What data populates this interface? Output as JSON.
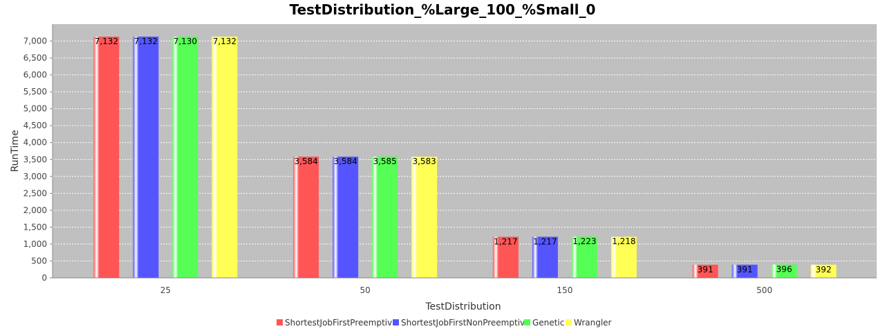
{
  "chart_data": {
    "type": "bar",
    "title": "TestDistribution_%Large_100_%Small_0",
    "xlabel": "TestDistribution",
    "ylabel": "RunTime",
    "categories": [
      "25",
      "50",
      "150",
      "500"
    ],
    "ylim": [
      0,
      7500
    ],
    "yticks": [
      0,
      500,
      1000,
      1500,
      2000,
      2500,
      3000,
      3500,
      4000,
      4500,
      5000,
      5500,
      6000,
      6500,
      7000
    ],
    "ytick_labels": [
      "0",
      "500",
      "1,000",
      "1,500",
      "2,000",
      "2,500",
      "3,000",
      "3,500",
      "4,000",
      "4,500",
      "5,000",
      "5,500",
      "6,000",
      "6,500",
      "7,000"
    ],
    "grid": true,
    "legend_position": "bottom",
    "series": [
      {
        "name": "ShortestJobFirstPreemptive",
        "color": "#ff5555",
        "values": [
          7132,
          3584,
          1217,
          391
        ],
        "labels": [
          "7,132",
          "3,584",
          "1,217",
          "391"
        ]
      },
      {
        "name": "ShortestJobFirstNonPreemptive",
        "color": "#5555ff",
        "values": [
          7132,
          3584,
          1217,
          391
        ],
        "labels": [
          "7,132",
          "3,584",
          "1,217",
          "391"
        ]
      },
      {
        "name": "Genetic",
        "color": "#55ff55",
        "values": [
          7130,
          3585,
          1223,
          396
        ],
        "labels": [
          "7,130",
          "3,585",
          "1,223",
          "396"
        ]
      },
      {
        "name": "Wrangler",
        "color": "#ffff55",
        "values": [
          7132,
          3583,
          1218,
          392
        ],
        "labels": [
          "7,132",
          "3,583",
          "1,218",
          "392"
        ]
      }
    ],
    "plot_background": "#c0c0c0"
  }
}
